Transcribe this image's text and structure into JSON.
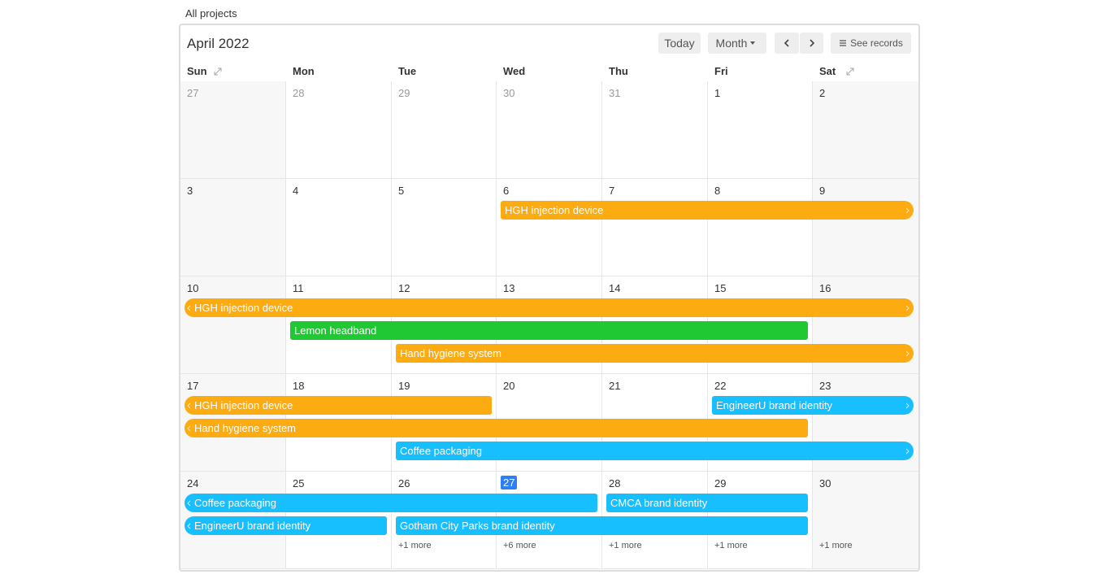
{
  "header": {
    "view_name": "All projects",
    "month_title": "April 2022",
    "today_button": "Today",
    "view_button": "Month",
    "records_button": "See records"
  },
  "weekdays": [
    "Sun",
    "Mon",
    "Tue",
    "Wed",
    "Thu",
    "Fri",
    "Sat"
  ],
  "weeks": [
    {
      "days": [
        {
          "d": 27,
          "other_month": true
        },
        {
          "d": 28,
          "other_month": true
        },
        {
          "d": 29,
          "other_month": true
        },
        {
          "d": 30,
          "other_month": true
        },
        {
          "d": 31,
          "other_month": true
        },
        {
          "d": 1
        },
        {
          "d": 2
        }
      ],
      "events": []
    },
    {
      "days": [
        {
          "d": 3
        },
        {
          "d": 4
        },
        {
          "d": 5
        },
        {
          "d": 6
        },
        {
          "d": 7
        },
        {
          "d": 8
        },
        {
          "d": 9
        }
      ],
      "events": [
        {
          "label": "HGH injection device",
          "start": 6,
          "end": 9,
          "color": "#fcab10",
          "continues_after": true
        }
      ]
    },
    {
      "days": [
        {
          "d": 10
        },
        {
          "d": 11
        },
        {
          "d": 12
        },
        {
          "d": 13
        },
        {
          "d": 14
        },
        {
          "d": 15
        },
        {
          "d": 16
        }
      ],
      "events": [
        {
          "label": "HGH injection device",
          "start": 10,
          "end": 16,
          "color": "#fcab10",
          "continues_before": true,
          "continues_after": true
        },
        {
          "label": "Lemon headband",
          "start": 11,
          "end": 15,
          "color": "#20c933"
        },
        {
          "label": "Hand hygiene system",
          "start": 12,
          "end": 16,
          "color": "#fcab10",
          "continues_after": true
        }
      ]
    },
    {
      "days": [
        {
          "d": 17
        },
        {
          "d": 18
        },
        {
          "d": 19
        },
        {
          "d": 20
        },
        {
          "d": 21
        },
        {
          "d": 22
        },
        {
          "d": 23
        }
      ],
      "events": [
        {
          "label": "HGH injection device",
          "start": 17,
          "end": 19,
          "color": "#fcab10",
          "continues_before": true
        },
        {
          "label": "EngineerU brand identity",
          "start": 22,
          "end": 23,
          "color": "#18bfff",
          "continues_after": true
        },
        {
          "label": "Hand hygiene system",
          "start": 17,
          "end": 22,
          "color": "#fcab10",
          "continues_before": true
        },
        {
          "label": "Coffee packaging",
          "start": 19,
          "end": 23,
          "color": "#18bfff",
          "continues_after": true
        }
      ]
    },
    {
      "days": [
        {
          "d": 24
        },
        {
          "d": 25
        },
        {
          "d": 26,
          "more": "+1 more"
        },
        {
          "d": 27,
          "today": true,
          "more": "+6 more"
        },
        {
          "d": 28,
          "more": "+1 more"
        },
        {
          "d": 29,
          "more": "+1 more"
        },
        {
          "d": 30,
          "more": "+1 more"
        }
      ],
      "events": [
        {
          "label": "Coffee packaging",
          "start": 24,
          "end": 27,
          "color": "#18bfff",
          "continues_before": true
        },
        {
          "label": "CMCA brand identity",
          "start": 28,
          "end": 29,
          "color": "#18bfff"
        },
        {
          "label": "EngineerU brand identity",
          "start": 24,
          "end": 25,
          "color": "#18bfff",
          "continues_before": true
        },
        {
          "label": "Gotham City Parks brand identity",
          "start": 26,
          "end": 29,
          "color": "#18bfff"
        }
      ]
    }
  ]
}
